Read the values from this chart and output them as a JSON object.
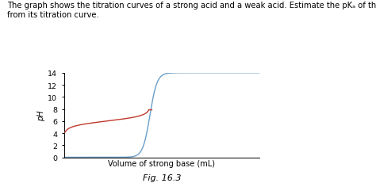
{
  "title_line1": "The graph shows the titration curves of a strong acid and a weak acid. Estimate the pKₐ of the weak acid",
  "title_line2": "from its titration curve.",
  "xlabel": "Volume of strong base (mL)",
  "ylabel": "pH",
  "fig_label": "Fig. 16.3",
  "ylim": [
    0,
    14
  ],
  "xlim": [
    0,
    50
  ],
  "strong_acid_color": "#6b9ec8",
  "weak_acid_color": "#c0392b",
  "background_color": "#ffffff",
  "title_fontsize": 7.2,
  "axis_fontsize": 7.0,
  "tick_fontsize": 6.8,
  "fig_label_fontsize": 8.0,
  "strong_ve": 22.0,
  "strong_steepness": 1.1,
  "weak_ve": 22.0,
  "weak_pka": 6.0,
  "weak_end_x": 22.5
}
